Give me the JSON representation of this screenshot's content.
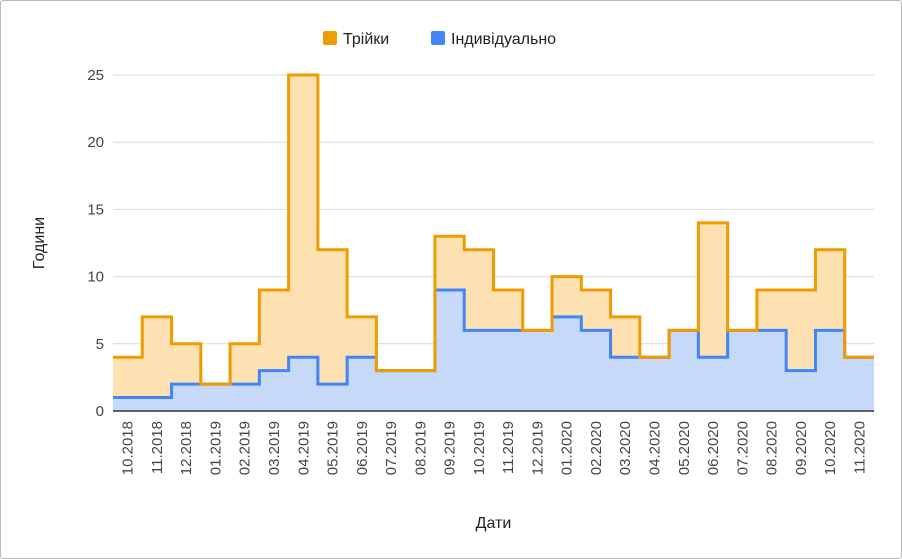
{
  "chart_data": {
    "type": "area",
    "stepped": true,
    "stacked": true,
    "xlabel": "Дати",
    "ylabel": "Години",
    "ylim": [
      0,
      25
    ],
    "yticks": [
      "0",
      "5",
      "10",
      "15",
      "20",
      "25"
    ],
    "grid": true,
    "legend_position": "top",
    "categories": [
      "10.2018",
      "11.2018",
      "12.2018",
      "01.2019",
      "02.2019",
      "03.2019",
      "04.2019",
      "05.2019",
      "06.2019",
      "07.2019",
      "08.2019",
      "09.2019",
      "10.2019",
      "11.2019",
      "12.2019",
      "01.2020",
      "02.2020",
      "03.2020",
      "04.2020",
      "05.2020",
      "06.2020",
      "07.2020",
      "08.2020",
      "09.2020",
      "10.2020",
      "11.2020"
    ],
    "series": [
      {
        "name": "Індивідуально",
        "color": "#4285f4",
        "fill": "#c6d9f8",
        "values": [
          1,
          1,
          2,
          2,
          2,
          3,
          4,
          2,
          4,
          3,
          3,
          9,
          6,
          6,
          6,
          7,
          6,
          4,
          4,
          6,
          4,
          6,
          6,
          3,
          6,
          4
        ]
      },
      {
        "name": "Трійки",
        "color": "#f09c00",
        "fill": "#fde1b3",
        "values": [
          3,
          6,
          3,
          0,
          3,
          6,
          21,
          10,
          3,
          0,
          0,
          4,
          6,
          3,
          0,
          3,
          3,
          3,
          0,
          0,
          10,
          0,
          3,
          6,
          6,
          0
        ]
      }
    ]
  }
}
